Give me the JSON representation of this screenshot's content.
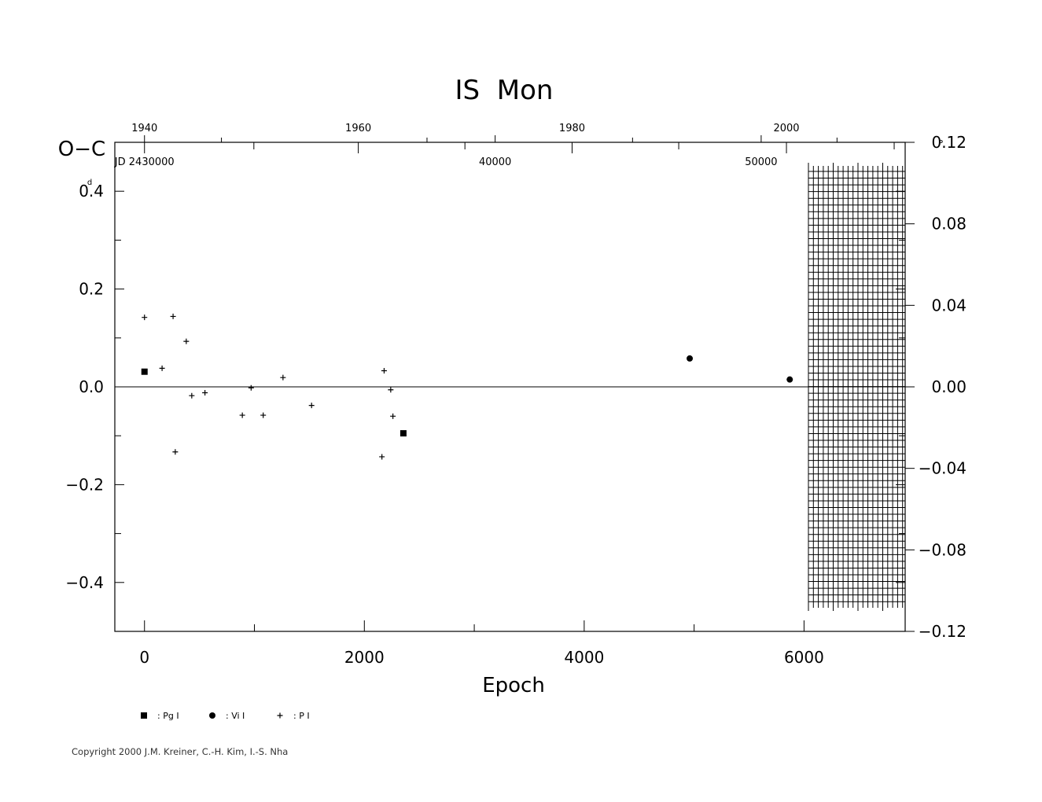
{
  "chart_data": {
    "type": "scatter",
    "title": "IS  Mon",
    "xlabel": "Epoch",
    "ylabel": "O−C",
    "ylabel_unit_left": "d",
    "ylabel_unit_right": "P",
    "xlim": [
      -270,
      6920
    ],
    "ylim": [
      -0.5,
      0.5
    ],
    "y2lim": [
      -0.12,
      0.12
    ],
    "x_ticks": [
      0,
      2000,
      4000,
      6000
    ],
    "x_tick_labels": [
      "0",
      "2000",
      "4000",
      "6000"
    ],
    "y_ticks": [
      0.4,
      0.2,
      0.0,
      -0.2,
      -0.4
    ],
    "y_tick_labels": [
      "0.4",
      "0.2",
      "0.0",
      "−0.2",
      "−0.4"
    ],
    "y2_ticks": [
      0.12,
      0.08,
      0.04,
      0.0,
      -0.04,
      -0.08,
      -0.12
    ],
    "y2_tick_labels": [
      "0.12",
      "0.08",
      "0.04",
      "0.00",
      "−0.04",
      "−0.08",
      "−0.12"
    ],
    "top_year_ticks": [
      {
        "epoch": 0,
        "label": "1940"
      },
      {
        "epoch": 1945,
        "label": "1960"
      },
      {
        "epoch": 3890,
        "label": "1980"
      },
      {
        "epoch": 5840,
        "label": "2000"
      }
    ],
    "jd_labels": [
      {
        "epoch": 0,
        "label": "JD  2430000"
      },
      {
        "epoch": 3190,
        "label": "40000"
      },
      {
        "epoch": 5610,
        "label": "50000"
      }
    ],
    "zero_line": true,
    "future_grid": {
      "from_epoch": 6040,
      "to_epoch": 6920
    },
    "series": [
      {
        "name": "Pg I",
        "marker": "square",
        "x": [
          0,
          2355
        ],
        "y": [
          0.031,
          -0.095
        ]
      },
      {
        "name": "Vi I",
        "marker": "circle",
        "x": [
          4960,
          5870
        ],
        "y": [
          0.058,
          0.015
        ]
      },
      {
        "name": "P I",
        "marker": "plus",
        "x": [
          0,
          160,
          260,
          280,
          380,
          430,
          550,
          890,
          970,
          1080,
          1260,
          1520,
          2160,
          2180,
          2240,
          2260
        ],
        "y": [
          0.142,
          0.038,
          0.144,
          -0.133,
          0.093,
          -0.018,
          -0.012,
          -0.058,
          -0.002,
          -0.058,
          0.019,
          -0.038,
          -0.143,
          0.033,
          -0.006,
          -0.06
        ]
      }
    ],
    "legend": [
      {
        "marker": "square",
        "label": ": Pg  I"
      },
      {
        "marker": "circle",
        "label": ": Vi  I"
      },
      {
        "marker": "plus",
        "label": ": P  I"
      }
    ],
    "legend_position": "bottom-left"
  },
  "footer": {
    "copyright": "Copyright 2000 J.M. Kreiner, C.-H. Kim, I.-S. Nha"
  }
}
